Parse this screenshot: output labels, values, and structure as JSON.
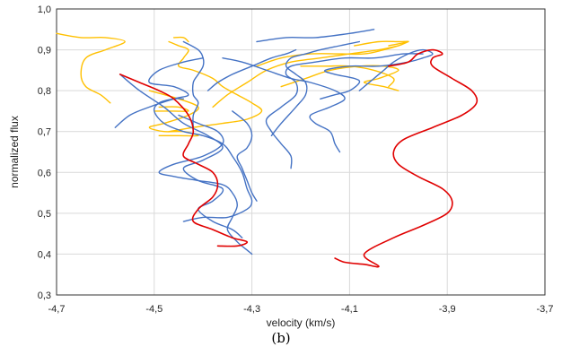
{
  "chart_data": {
    "type": "line",
    "xlabel": "velocity (km/s)",
    "ylabel": "normalized flux",
    "xlim": [
      -4.7,
      -3.7
    ],
    "ylim": [
      0.3,
      1.0
    ],
    "x_ticks": [
      "-4,7",
      "-4,5",
      "-4,3",
      "-4,1",
      "-3,9",
      "-3,7"
    ],
    "y_ticks": [
      "0,3",
      "0,4",
      "0,5",
      "0,6",
      "0,7",
      "0,8",
      "0,9",
      "1,0"
    ],
    "grid": true,
    "legend": "none",
    "series_colors": {
      "blue": "#4472c4",
      "orange": "#ffc000",
      "red": "#e00000"
    },
    "series": [
      {
        "color": "blue",
        "points": [
          [
            -4.58,
            0.71
          ],
          [
            -4.55,
            0.74
          ],
          [
            -4.51,
            0.76
          ],
          [
            -4.46,
            0.78
          ],
          [
            -4.43,
            0.79
          ],
          [
            -4.46,
            0.81
          ],
          [
            -4.51,
            0.82
          ],
          [
            -4.49,
            0.85
          ],
          [
            -4.44,
            0.87
          ],
          [
            -4.4,
            0.88
          ]
        ]
      },
      {
        "color": "blue",
        "points": [
          [
            -4.57,
            0.84
          ],
          [
            -4.53,
            0.8
          ],
          [
            -4.48,
            0.76
          ],
          [
            -4.44,
            0.72
          ],
          [
            -4.39,
            0.69
          ],
          [
            -4.36,
            0.66
          ],
          [
            -4.4,
            0.63
          ],
          [
            -4.44,
            0.61
          ],
          [
            -4.41,
            0.58
          ],
          [
            -4.36,
            0.56
          ],
          [
            -4.38,
            0.53
          ],
          [
            -4.41,
            0.51
          ],
          [
            -4.38,
            0.48
          ],
          [
            -4.34,
            0.46
          ],
          [
            -4.32,
            0.44
          ]
        ]
      },
      {
        "color": "blue",
        "points": [
          [
            -4.44,
            0.48
          ],
          [
            -4.4,
            0.49
          ],
          [
            -4.35,
            0.49
          ],
          [
            -4.31,
            0.51
          ],
          [
            -4.3,
            0.53
          ],
          [
            -4.31,
            0.56
          ],
          [
            -4.32,
            0.6
          ],
          [
            -4.34,
            0.64
          ],
          [
            -4.36,
            0.67
          ],
          [
            -4.4,
            0.69
          ],
          [
            -4.44,
            0.7
          ],
          [
            -4.48,
            0.72
          ],
          [
            -4.5,
            0.75
          ],
          [
            -4.49,
            0.77
          ],
          [
            -4.46,
            0.78
          ],
          [
            -4.44,
            0.78
          ]
        ]
      },
      {
        "color": "blue",
        "points": [
          [
            -4.45,
            0.74
          ],
          [
            -4.41,
            0.72
          ],
          [
            -4.37,
            0.7
          ],
          [
            -4.36,
            0.67
          ],
          [
            -4.4,
            0.64
          ],
          [
            -4.46,
            0.62
          ],
          [
            -4.49,
            0.6
          ],
          [
            -4.46,
            0.59
          ],
          [
            -4.41,
            0.58
          ],
          [
            -4.36,
            0.57
          ],
          [
            -4.34,
            0.55
          ],
          [
            -4.33,
            0.52
          ],
          [
            -4.34,
            0.49
          ],
          [
            -4.35,
            0.46
          ],
          [
            -4.33,
            0.43
          ],
          [
            -4.31,
            0.41
          ],
          [
            -4.3,
            0.4
          ]
        ]
      },
      {
        "color": "blue",
        "points": [
          [
            -4.34,
            0.75
          ],
          [
            -4.31,
            0.72
          ],
          [
            -4.3,
            0.69
          ],
          [
            -4.31,
            0.66
          ],
          [
            -4.33,
            0.64
          ],
          [
            -4.32,
            0.61
          ],
          [
            -4.31,
            0.58
          ],
          [
            -4.3,
            0.55
          ],
          [
            -4.29,
            0.53
          ]
        ]
      },
      {
        "color": "blue",
        "points": [
          [
            -4.42,
            0.71
          ],
          [
            -4.42,
            0.74
          ],
          [
            -4.41,
            0.77
          ],
          [
            -4.42,
            0.79
          ],
          [
            -4.42,
            0.82
          ],
          [
            -4.41,
            0.84
          ],
          [
            -4.4,
            0.86
          ],
          [
            -4.4,
            0.88
          ],
          [
            -4.41,
            0.9
          ],
          [
            -4.44,
            0.92
          ]
        ]
      },
      {
        "color": "blue",
        "points": [
          [
            -4.36,
            0.88
          ],
          [
            -4.32,
            0.87
          ],
          [
            -4.27,
            0.85
          ],
          [
            -4.22,
            0.83
          ],
          [
            -4.18,
            0.82
          ],
          [
            -4.13,
            0.8
          ],
          [
            -4.11,
            0.78
          ],
          [
            -4.14,
            0.76
          ],
          [
            -4.18,
            0.74
          ],
          [
            -4.17,
            0.72
          ],
          [
            -4.14,
            0.7
          ],
          [
            -4.13,
            0.67
          ],
          [
            -4.12,
            0.65
          ]
        ]
      },
      {
        "color": "blue",
        "points": [
          [
            -4.26,
            0.69
          ],
          [
            -4.24,
            0.72
          ],
          [
            -4.21,
            0.76
          ],
          [
            -4.19,
            0.79
          ],
          [
            -4.19,
            0.82
          ],
          [
            -4.21,
            0.84
          ],
          [
            -4.23,
            0.86
          ],
          [
            -4.22,
            0.88
          ],
          [
            -4.19,
            0.89
          ],
          [
            -4.16,
            0.9
          ],
          [
            -4.12,
            0.91
          ],
          [
            -4.08,
            0.92
          ]
        ]
      },
      {
        "color": "blue",
        "points": [
          [
            -4.22,
            0.61
          ],
          [
            -4.22,
            0.64
          ],
          [
            -4.24,
            0.67
          ],
          [
            -4.26,
            0.7
          ],
          [
            -4.27,
            0.73
          ],
          [
            -4.24,
            0.76
          ],
          [
            -4.21,
            0.79
          ],
          [
            -4.21,
            0.82
          ],
          [
            -4.23,
            0.84
          ],
          [
            -4.22,
            0.86
          ],
          [
            -4.17,
            0.87
          ],
          [
            -4.11,
            0.88
          ],
          [
            -4.05,
            0.88
          ],
          [
            -3.99,
            0.89
          ],
          [
            -3.95,
            0.89
          ]
        ]
      },
      {
        "color": "blue",
        "points": [
          [
            -4.29,
            0.92
          ],
          [
            -4.23,
            0.93
          ],
          [
            -4.17,
            0.93
          ],
          [
            -4.1,
            0.94
          ],
          [
            -4.05,
            0.95
          ]
        ]
      },
      {
        "color": "blue",
        "points": [
          [
            -4.16,
            0.78
          ],
          [
            -4.13,
            0.79
          ],
          [
            -4.1,
            0.8
          ],
          [
            -4.08,
            0.82
          ],
          [
            -4.09,
            0.83
          ],
          [
            -4.13,
            0.84
          ],
          [
            -4.15,
            0.85
          ],
          [
            -4.1,
            0.86
          ],
          [
            -4.04,
            0.86
          ],
          [
            -3.98,
            0.87
          ],
          [
            -3.95,
            0.88
          ],
          [
            -3.93,
            0.89
          ],
          [
            -3.95,
            0.9
          ],
          [
            -3.98,
            0.89
          ],
          [
            -4.01,
            0.87
          ],
          [
            -4.03,
            0.85
          ],
          [
            -4.05,
            0.83
          ],
          [
            -4.07,
            0.81
          ],
          [
            -4.08,
            0.8
          ]
        ]
      },
      {
        "color": "blue",
        "points": [
          [
            -4.39,
            0.8
          ],
          [
            -4.37,
            0.82
          ],
          [
            -4.34,
            0.84
          ],
          [
            -4.3,
            0.86
          ],
          [
            -4.26,
            0.88
          ],
          [
            -4.23,
            0.89
          ],
          [
            -4.21,
            0.9
          ]
        ]
      },
      {
        "color": "orange",
        "points": [
          [
            -4.7,
            0.94
          ],
          [
            -4.65,
            0.93
          ],
          [
            -4.6,
            0.93
          ],
          [
            -4.56,
            0.92
          ],
          [
            -4.6,
            0.9
          ],
          [
            -4.64,
            0.88
          ],
          [
            -4.65,
            0.84
          ],
          [
            -4.64,
            0.81
          ],
          [
            -4.61,
            0.79
          ],
          [
            -4.59,
            0.77
          ]
        ]
      },
      {
        "color": "orange",
        "points": [
          [
            -4.47,
            0.92
          ],
          [
            -4.45,
            0.91
          ],
          [
            -4.43,
            0.9
          ],
          [
            -4.44,
            0.88
          ],
          [
            -4.45,
            0.86
          ],
          [
            -4.42,
            0.85
          ],
          [
            -4.38,
            0.83
          ],
          [
            -4.36,
            0.81
          ],
          [
            -4.33,
            0.79
          ],
          [
            -4.3,
            0.77
          ],
          [
            -4.28,
            0.75
          ],
          [
            -4.31,
            0.73
          ],
          [
            -4.36,
            0.72
          ],
          [
            -4.42,
            0.71
          ],
          [
            -4.47,
            0.7
          ]
        ]
      },
      {
        "color": "orange",
        "points": [
          [
            -4.46,
            0.93
          ],
          [
            -4.44,
            0.93
          ],
          [
            -4.43,
            0.92
          ]
        ]
      },
      {
        "color": "orange",
        "points": [
          [
            -4.51,
            0.8
          ],
          [
            -4.45,
            0.78
          ],
          [
            -4.41,
            0.76
          ],
          [
            -4.43,
            0.74
          ],
          [
            -4.48,
            0.72
          ],
          [
            -4.51,
            0.71
          ],
          [
            -4.48,
            0.7
          ],
          [
            -4.44,
            0.7
          ],
          [
            -4.41,
            0.69
          ],
          [
            -4.45,
            0.69
          ],
          [
            -4.49,
            0.69
          ]
        ]
      },
      {
        "color": "orange",
        "points": [
          [
            -4.5,
            0.75
          ],
          [
            -4.46,
            0.75
          ],
          [
            -4.43,
            0.75
          ],
          [
            -4.45,
            0.76
          ],
          [
            -4.49,
            0.76
          ]
        ]
      },
      {
        "color": "orange",
        "points": [
          [
            -4.29,
            0.86
          ],
          [
            -4.24,
            0.88
          ],
          [
            -4.18,
            0.89
          ],
          [
            -4.12,
            0.89
          ],
          [
            -4.07,
            0.89
          ],
          [
            -4.03,
            0.9
          ],
          [
            -4.0,
            0.91
          ],
          [
            -3.98,
            0.92
          ]
        ]
      },
      {
        "color": "orange",
        "points": [
          [
            -4.24,
            0.81
          ],
          [
            -4.19,
            0.83
          ],
          [
            -4.14,
            0.85
          ],
          [
            -4.08,
            0.86
          ],
          [
            -4.03,
            0.86
          ],
          [
            -4.0,
            0.85
          ],
          [
            -4.04,
            0.83
          ],
          [
            -4.07,
            0.82
          ],
          [
            -4.03,
            0.81
          ],
          [
            -4.0,
            0.8
          ]
        ]
      },
      {
        "color": "orange",
        "points": [
          [
            -4.38,
            0.76
          ],
          [
            -4.35,
            0.79
          ],
          [
            -4.31,
            0.82
          ],
          [
            -4.27,
            0.85
          ],
          [
            -4.22,
            0.87
          ],
          [
            -4.16,
            0.88
          ],
          [
            -4.1,
            0.89
          ],
          [
            -4.04,
            0.9
          ],
          [
            -4.0,
            0.91
          ]
        ]
      },
      {
        "color": "orange",
        "points": [
          [
            -4.09,
            0.91
          ],
          [
            -4.04,
            0.92
          ],
          [
            -4.0,
            0.92
          ],
          [
            -3.98,
            0.92
          ],
          [
            -4.02,
            0.91
          ]
        ]
      },
      {
        "color": "orange",
        "points": [
          [
            -4.2,
            0.86
          ],
          [
            -4.15,
            0.86
          ],
          [
            -4.1,
            0.86
          ],
          [
            -4.05,
            0.85
          ],
          [
            -4.01,
            0.83
          ],
          [
            -4.02,
            0.81
          ]
        ]
      },
      {
        "color": "red",
        "points": [
          [
            -4.57,
            0.84
          ],
          [
            -4.53,
            0.82
          ],
          [
            -4.49,
            0.8
          ],
          [
            -4.46,
            0.78
          ],
          [
            -4.43,
            0.74
          ],
          [
            -4.42,
            0.7
          ],
          [
            -4.43,
            0.67
          ],
          [
            -4.44,
            0.64
          ],
          [
            -4.41,
            0.62
          ],
          [
            -4.38,
            0.6
          ],
          [
            -4.37,
            0.57
          ],
          [
            -4.38,
            0.54
          ],
          [
            -4.41,
            0.51
          ],
          [
            -4.42,
            0.48
          ],
          [
            -4.38,
            0.46
          ],
          [
            -4.34,
            0.44
          ],
          [
            -4.31,
            0.43
          ],
          [
            -4.33,
            0.42
          ],
          [
            -4.37,
            0.42
          ]
        ]
      },
      {
        "color": "red",
        "points": [
          [
            -4.13,
            0.39
          ],
          [
            -4.11,
            0.38
          ],
          [
            -4.07,
            0.375
          ],
          [
            -4.04,
            0.37
          ],
          [
            -4.07,
            0.4
          ],
          [
            -4.01,
            0.44
          ],
          [
            -3.95,
            0.47
          ],
          [
            -3.9,
            0.5
          ],
          [
            -3.89,
            0.53
          ],
          [
            -3.91,
            0.56
          ],
          [
            -3.96,
            0.59
          ],
          [
            -4.0,
            0.62
          ],
          [
            -4.01,
            0.65
          ],
          [
            -3.99,
            0.68
          ],
          [
            -3.93,
            0.71
          ],
          [
            -3.87,
            0.74
          ],
          [
            -3.84,
            0.77
          ],
          [
            -3.85,
            0.8
          ],
          [
            -3.89,
            0.83
          ],
          [
            -3.93,
            0.86
          ],
          [
            -3.93,
            0.88
          ],
          [
            -3.91,
            0.89
          ],
          [
            -3.93,
            0.9
          ],
          [
            -3.96,
            0.89
          ],
          [
            -3.98,
            0.87
          ],
          [
            -4.02,
            0.86
          ]
        ]
      }
    ]
  },
  "caption": "(b)"
}
